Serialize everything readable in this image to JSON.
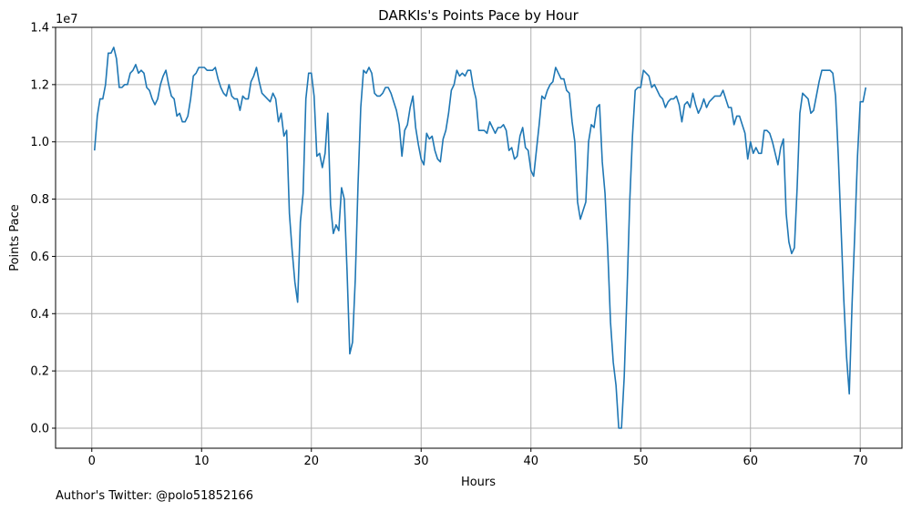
{
  "chart_data": {
    "type": "line",
    "title": "DARKIs's Points Pace by Hour",
    "xlabel": "Hours",
    "ylabel": "Points Pace",
    "y_multiplier_label": "1e7",
    "xlim": [
      -3.3,
      73.8
    ],
    "ylim": [
      -0.07,
      1.4
    ],
    "x_ticks": [
      0,
      10,
      20,
      30,
      40,
      50,
      60,
      70
    ],
    "x_tick_labels": [
      "0",
      "10",
      "20",
      "30",
      "40",
      "50",
      "60",
      "70"
    ],
    "y_ticks": [
      0.0,
      0.2,
      0.4,
      0.6,
      0.8,
      1.0,
      1.2,
      1.4
    ],
    "y_tick_labels": [
      "0.0",
      "0.2",
      "0.4",
      "0.6",
      "0.8",
      "1.0",
      "1.2",
      "1.4"
    ],
    "grid": true,
    "series": [
      {
        "color": "#1f77b4",
        "points": [
          [
            0.25,
            0.97
          ],
          [
            0.5,
            1.09
          ],
          [
            0.75,
            1.15
          ],
          [
            1.0,
            1.15
          ],
          [
            1.25,
            1.2
          ],
          [
            1.5,
            1.31
          ],
          [
            1.75,
            1.31
          ],
          [
            2.0,
            1.33
          ],
          [
            2.25,
            1.29
          ],
          [
            2.5,
            1.19
          ],
          [
            2.75,
            1.19
          ],
          [
            3.0,
            1.2
          ],
          [
            3.25,
            1.2
          ],
          [
            3.5,
            1.24
          ],
          [
            3.75,
            1.25
          ],
          [
            4.0,
            1.27
          ],
          [
            4.25,
            1.24
          ],
          [
            4.5,
            1.25
          ],
          [
            4.75,
            1.24
          ],
          [
            5.0,
            1.19
          ],
          [
            5.25,
            1.18
          ],
          [
            5.5,
            1.15
          ],
          [
            5.75,
            1.13
          ],
          [
            6.0,
            1.15
          ],
          [
            6.25,
            1.2
          ],
          [
            6.5,
            1.23
          ],
          [
            6.75,
            1.25
          ],
          [
            7.0,
            1.2
          ],
          [
            7.25,
            1.16
          ],
          [
            7.5,
            1.15
          ],
          [
            7.75,
            1.09
          ],
          [
            8.0,
            1.1
          ],
          [
            8.25,
            1.07
          ],
          [
            8.5,
            1.07
          ],
          [
            8.75,
            1.09
          ],
          [
            9.0,
            1.15
          ],
          [
            9.25,
            1.23
          ],
          [
            9.5,
            1.24
          ],
          [
            9.75,
            1.26
          ],
          [
            10.0,
            1.26
          ],
          [
            10.25,
            1.26
          ],
          [
            10.5,
            1.25
          ],
          [
            10.75,
            1.25
          ],
          [
            11.0,
            1.25
          ],
          [
            11.25,
            1.26
          ],
          [
            11.5,
            1.22
          ],
          [
            11.75,
            1.19
          ],
          [
            12.0,
            1.17
          ],
          [
            12.25,
            1.16
          ],
          [
            12.5,
            1.2
          ],
          [
            12.75,
            1.16
          ],
          [
            13.0,
            1.15
          ],
          [
            13.25,
            1.15
          ],
          [
            13.5,
            1.11
          ],
          [
            13.75,
            1.16
          ],
          [
            14.0,
            1.15
          ],
          [
            14.25,
            1.15
          ],
          [
            14.5,
            1.21
          ],
          [
            14.75,
            1.23
          ],
          [
            15.0,
            1.26
          ],
          [
            15.25,
            1.21
          ],
          [
            15.5,
            1.17
          ],
          [
            15.75,
            1.16
          ],
          [
            16.0,
            1.15
          ],
          [
            16.25,
            1.14
          ],
          [
            16.5,
            1.17
          ],
          [
            16.75,
            1.15
          ],
          [
            17.0,
            1.07
          ],
          [
            17.25,
            1.1
          ],
          [
            17.5,
            1.02
          ],
          [
            17.75,
            1.04
          ],
          [
            18.0,
            0.75
          ],
          [
            18.25,
            0.62
          ],
          [
            18.5,
            0.51
          ],
          [
            18.75,
            0.44
          ],
          [
            19.0,
            0.72
          ],
          [
            19.25,
            0.82
          ],
          [
            19.5,
            1.15
          ],
          [
            19.75,
            1.24
          ],
          [
            20.0,
            1.24
          ],
          [
            20.25,
            1.16
          ],
          [
            20.5,
            0.95
          ],
          [
            20.75,
            0.96
          ],
          [
            21.0,
            0.91
          ],
          [
            21.25,
            0.96
          ],
          [
            21.5,
            1.1
          ],
          [
            21.75,
            0.78
          ],
          [
            22.0,
            0.68
          ],
          [
            22.25,
            0.71
          ],
          [
            22.5,
            0.69
          ],
          [
            22.75,
            0.84
          ],
          [
            23.0,
            0.8
          ],
          [
            23.25,
            0.55
          ],
          [
            23.5,
            0.26
          ],
          [
            23.75,
            0.3
          ],
          [
            24.0,
            0.52
          ],
          [
            24.25,
            0.85
          ],
          [
            24.5,
            1.12
          ],
          [
            24.75,
            1.25
          ],
          [
            25.0,
            1.24
          ],
          [
            25.25,
            1.26
          ],
          [
            25.5,
            1.24
          ],
          [
            25.75,
            1.17
          ],
          [
            26.0,
            1.16
          ],
          [
            26.25,
            1.16
          ],
          [
            26.5,
            1.17
          ],
          [
            26.75,
            1.19
          ],
          [
            27.0,
            1.19
          ],
          [
            27.25,
            1.17
          ],
          [
            27.5,
            1.14
          ],
          [
            27.75,
            1.11
          ],
          [
            28.0,
            1.06
          ],
          [
            28.25,
            0.95
          ],
          [
            28.5,
            1.04
          ],
          [
            28.75,
            1.06
          ],
          [
            29.0,
            1.12
          ],
          [
            29.25,
            1.16
          ],
          [
            29.5,
            1.05
          ],
          [
            29.75,
            0.99
          ],
          [
            30.0,
            0.94
          ],
          [
            30.25,
            0.92
          ],
          [
            30.5,
            1.03
          ],
          [
            30.75,
            1.01
          ],
          [
            31.0,
            1.02
          ],
          [
            31.25,
            0.97
          ],
          [
            31.5,
            0.94
          ],
          [
            31.75,
            0.93
          ],
          [
            32.0,
            1.01
          ],
          [
            32.25,
            1.04
          ],
          [
            32.5,
            1.1
          ],
          [
            32.75,
            1.18
          ],
          [
            33.0,
            1.2
          ],
          [
            33.25,
            1.25
          ],
          [
            33.5,
            1.23
          ],
          [
            33.75,
            1.24
          ],
          [
            34.0,
            1.23
          ],
          [
            34.25,
            1.25
          ],
          [
            34.5,
            1.25
          ],
          [
            34.75,
            1.19
          ],
          [
            35.0,
            1.15
          ],
          [
            35.25,
            1.04
          ],
          [
            35.5,
            1.04
          ],
          [
            35.75,
            1.04
          ],
          [
            36.0,
            1.03
          ],
          [
            36.25,
            1.07
          ],
          [
            36.5,
            1.05
          ],
          [
            36.75,
            1.03
          ],
          [
            37.0,
            1.05
          ],
          [
            37.25,
            1.05
          ],
          [
            37.5,
            1.06
          ],
          [
            37.75,
            1.04
          ],
          [
            38.0,
            0.97
          ],
          [
            38.25,
            0.98
          ],
          [
            38.5,
            0.94
          ],
          [
            38.75,
            0.95
          ],
          [
            39.0,
            1.02
          ],
          [
            39.25,
            1.05
          ],
          [
            39.5,
            0.98
          ],
          [
            39.75,
            0.97
          ],
          [
            40.0,
            0.9
          ],
          [
            40.25,
            0.88
          ],
          [
            40.5,
            0.97
          ],
          [
            40.75,
            1.06
          ],
          [
            41.0,
            1.16
          ],
          [
            41.25,
            1.15
          ],
          [
            41.5,
            1.18
          ],
          [
            41.75,
            1.2
          ],
          [
            42.0,
            1.21
          ],
          [
            42.25,
            1.26
          ],
          [
            42.5,
            1.24
          ],
          [
            42.75,
            1.22
          ],
          [
            43.0,
            1.22
          ],
          [
            43.25,
            1.18
          ],
          [
            43.5,
            1.17
          ],
          [
            43.75,
            1.07
          ],
          [
            44.0,
            1.0
          ],
          [
            44.25,
            0.79
          ],
          [
            44.5,
            0.73
          ],
          [
            44.75,
            0.76
          ],
          [
            45.0,
            0.79
          ],
          [
            45.25,
            1.0
          ],
          [
            45.5,
            1.06
          ],
          [
            45.75,
            1.05
          ],
          [
            46.0,
            1.12
          ],
          [
            46.25,
            1.13
          ],
          [
            46.5,
            0.93
          ],
          [
            46.75,
            0.82
          ],
          [
            47.0,
            0.62
          ],
          [
            47.25,
            0.37
          ],
          [
            47.5,
            0.23
          ],
          [
            47.75,
            0.15
          ],
          [
            48.0,
            0.0
          ],
          [
            48.25,
            0.0
          ],
          [
            48.5,
            0.18
          ],
          [
            48.75,
            0.47
          ],
          [
            49.0,
            0.79
          ],
          [
            49.25,
            1.02
          ],
          [
            49.5,
            1.18
          ],
          [
            49.75,
            1.19
          ],
          [
            50.0,
            1.19
          ],
          [
            50.25,
            1.25
          ],
          [
            50.5,
            1.24
          ],
          [
            50.75,
            1.23
          ],
          [
            51.0,
            1.19
          ],
          [
            51.25,
            1.2
          ],
          [
            51.5,
            1.18
          ],
          [
            51.75,
            1.16
          ],
          [
            52.0,
            1.15
          ],
          [
            52.25,
            1.12
          ],
          [
            52.5,
            1.14
          ],
          [
            52.75,
            1.15
          ],
          [
            53.0,
            1.15
          ],
          [
            53.25,
            1.16
          ],
          [
            53.5,
            1.13
          ],
          [
            53.75,
            1.07
          ],
          [
            54.0,
            1.13
          ],
          [
            54.25,
            1.14
          ],
          [
            54.5,
            1.12
          ],
          [
            54.75,
            1.17
          ],
          [
            55.0,
            1.13
          ],
          [
            55.25,
            1.1
          ],
          [
            55.5,
            1.12
          ],
          [
            55.75,
            1.15
          ],
          [
            56.0,
            1.12
          ],
          [
            56.25,
            1.14
          ],
          [
            56.5,
            1.15
          ],
          [
            56.75,
            1.16
          ],
          [
            57.0,
            1.16
          ],
          [
            57.25,
            1.16
          ],
          [
            57.5,
            1.18
          ],
          [
            57.75,
            1.15
          ],
          [
            58.0,
            1.12
          ],
          [
            58.25,
            1.12
          ],
          [
            58.5,
            1.06
          ],
          [
            58.75,
            1.09
          ],
          [
            59.0,
            1.09
          ],
          [
            59.25,
            1.06
          ],
          [
            59.5,
            1.03
          ],
          [
            59.75,
            0.94
          ],
          [
            60.0,
            1.0
          ],
          [
            60.25,
            0.96
          ],
          [
            60.5,
            0.98
          ],
          [
            60.75,
            0.96
          ],
          [
            61.0,
            0.96
          ],
          [
            61.25,
            1.04
          ],
          [
            61.5,
            1.04
          ],
          [
            61.75,
            1.03
          ],
          [
            62.0,
            1.0
          ],
          [
            62.25,
            0.96
          ],
          [
            62.5,
            0.92
          ],
          [
            62.75,
            0.98
          ],
          [
            63.0,
            1.01
          ],
          [
            63.25,
            0.75
          ],
          [
            63.5,
            0.65
          ],
          [
            63.75,
            0.61
          ],
          [
            64.0,
            0.63
          ],
          [
            64.25,
            0.84
          ],
          [
            64.5,
            1.1
          ],
          [
            64.75,
            1.17
          ],
          [
            65.0,
            1.16
          ],
          [
            65.25,
            1.15
          ],
          [
            65.5,
            1.1
          ],
          [
            65.75,
            1.11
          ],
          [
            66.0,
            1.16
          ],
          [
            66.25,
            1.21
          ],
          [
            66.5,
            1.25
          ],
          [
            66.75,
            1.25
          ],
          [
            67.0,
            1.25
          ],
          [
            67.25,
            1.25
          ],
          [
            67.5,
            1.24
          ],
          [
            67.75,
            1.16
          ],
          [
            68.0,
            0.95
          ],
          [
            68.25,
            0.7
          ],
          [
            68.5,
            0.45
          ],
          [
            68.75,
            0.25
          ],
          [
            69.0,
            0.12
          ],
          [
            69.25,
            0.43
          ],
          [
            69.5,
            0.68
          ],
          [
            69.75,
            0.95
          ],
          [
            70.0,
            1.14
          ],
          [
            70.25,
            1.14
          ],
          [
            70.5,
            1.19
          ]
        ]
      }
    ]
  },
  "footer_text": "Author's Twitter: @polo51852166"
}
